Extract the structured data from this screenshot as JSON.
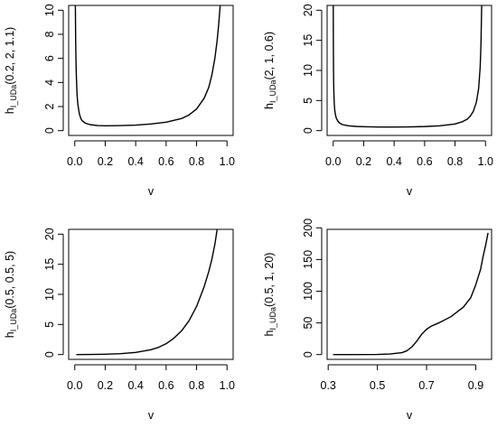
{
  "chart_data": [
    {
      "type": "line",
      "title": "",
      "xlabel": "v",
      "ylabel": {
        "main": "h",
        "sub": "I_UDa",
        "args": "(0.2, 2, 1.1)"
      },
      "xlim": [
        -0.04,
        1.04
      ],
      "ylim": [
        -0.4,
        10.4
      ],
      "xticks": [
        0.0,
        0.2,
        0.4,
        0.6,
        0.8,
        1.0
      ],
      "xtick_labels": [
        "0.0",
        "0.2",
        "0.4",
        "0.6",
        "0.8",
        "1.0"
      ],
      "yticks": [
        0,
        2,
        4,
        6,
        8,
        10
      ],
      "ytick_labels": [
        "0",
        "2",
        "4",
        "6",
        "8",
        "10"
      ],
      "grid": false,
      "series": [
        {
          "x": [
            0.004,
            0.006,
            0.008,
            0.01,
            0.015,
            0.02,
            0.03,
            0.04,
            0.05,
            0.07,
            0.1,
            0.15,
            0.2,
            0.3,
            0.4,
            0.5,
            0.6,
            0.7,
            0.75,
            0.8,
            0.85,
            0.88,
            0.9,
            0.92,
            0.935,
            0.945,
            0.95,
            0.955
          ],
          "y": [
            10.4,
            7.4,
            5.8,
            4.7,
            3.0,
            2.2,
            1.4,
            1.0,
            0.8,
            0.62,
            0.5,
            0.42,
            0.4,
            0.42,
            0.46,
            0.55,
            0.7,
            1.0,
            1.3,
            1.8,
            2.7,
            3.6,
            4.6,
            6.0,
            7.5,
            8.8,
            9.6,
            10.4
          ]
        }
      ]
    },
    {
      "type": "line",
      "title": "",
      "xlabel": "v",
      "ylabel": {
        "main": "h",
        "sub": "I_UDa",
        "args": "(2, 1, 0.6)"
      },
      "xlim": [
        -0.04,
        1.04
      ],
      "ylim": [
        -0.8,
        20.8
      ],
      "xticks": [
        0.0,
        0.2,
        0.4,
        0.6,
        0.8,
        1.0
      ],
      "xtick_labels": [
        "0.0",
        "0.2",
        "0.4",
        "0.6",
        "0.8",
        "1.0"
      ],
      "yticks": [
        0,
        5,
        10,
        15,
        20
      ],
      "ytick_labels": [
        "0",
        "5",
        "10",
        "15",
        "20"
      ],
      "grid": false,
      "series": [
        {
          "x": [
            0.0005,
            0.001,
            0.002,
            0.004,
            0.007,
            0.01,
            0.015,
            0.02,
            0.03,
            0.04,
            0.06,
            0.1,
            0.15,
            0.2,
            0.3,
            0.4,
            0.5,
            0.6,
            0.7,
            0.8,
            0.85,
            0.88,
            0.9,
            0.92,
            0.94,
            0.955,
            0.965,
            0.97,
            0.975
          ],
          "y": [
            20.8,
            15.0,
            10.0,
            6.5,
            4.5,
            3.4,
            2.6,
            2.1,
            1.6,
            1.3,
            1.0,
            0.8,
            0.7,
            0.65,
            0.6,
            0.6,
            0.62,
            0.68,
            0.8,
            1.1,
            1.5,
            1.9,
            2.4,
            3.2,
            4.7,
            7.0,
            10.5,
            14.0,
            20.8
          ]
        }
      ]
    },
    {
      "type": "line",
      "title": "",
      "xlabel": "v",
      "ylabel": {
        "main": "h",
        "sub": "I_UDa",
        "args": "(0.5, 0.5, 5)"
      },
      "xlim": [
        -0.04,
        1.04
      ],
      "ylim": [
        -0.8,
        20.8
      ],
      "xticks": [
        0.0,
        0.2,
        0.4,
        0.6,
        0.8,
        1.0
      ],
      "xtick_labels": [
        "0.0",
        "0.2",
        "0.4",
        "0.6",
        "0.8",
        "1.0"
      ],
      "yticks": [
        0,
        5,
        10,
        15,
        20
      ],
      "ytick_labels": [
        "0",
        "5",
        "10",
        "15",
        "20"
      ],
      "grid": false,
      "series": [
        {
          "x": [
            0.01,
            0.1,
            0.2,
            0.3,
            0.4,
            0.5,
            0.55,
            0.6,
            0.65,
            0.7,
            0.75,
            0.8,
            0.85,
            0.88,
            0.9,
            0.92,
            0.935
          ],
          "y": [
            0.0,
            0.02,
            0.06,
            0.15,
            0.35,
            0.8,
            1.2,
            1.8,
            2.7,
            3.9,
            5.6,
            8.0,
            11.3,
            13.8,
            15.8,
            18.3,
            20.8
          ]
        }
      ]
    },
    {
      "type": "line",
      "title": "",
      "xlabel": "v",
      "ylabel": {
        "main": "h",
        "sub": "I_UDa",
        "args": "(0.5, 1, 20)"
      },
      "xlim": [
        0.2956,
        0.9644
      ],
      "ylim": [
        -7.6,
        197.6
      ],
      "xticks": [
        0.3,
        0.5,
        0.7,
        0.9
      ],
      "xtick_labels": [
        "0.3",
        "0.5",
        "0.7",
        "0.9"
      ],
      "yticks": [
        0,
        50,
        100,
        150,
        200
      ],
      "ytick_labels": [
        "0",
        "50",
        "100",
        "150",
        "200"
      ],
      "grid": false,
      "series": [
        {
          "x": [
            0.32,
            0.4,
            0.5,
            0.55,
            0.6,
            0.62,
            0.64,
            0.66,
            0.68,
            0.7,
            0.72,
            0.75,
            0.8,
            0.85,
            0.88,
            0.9,
            0.92,
            0.93,
            0.94,
            0.95
          ],
          "y": [
            0.0,
            0.0,
            0.2,
            0.8,
            3.0,
            6.0,
            12.0,
            21.0,
            32.0,
            40.0,
            45.0,
            50.0,
            60.0,
            75.0,
            90.0,
            110.0,
            135.0,
            155.0,
            172.0,
            192.0
          ]
        }
      ]
    }
  ]
}
